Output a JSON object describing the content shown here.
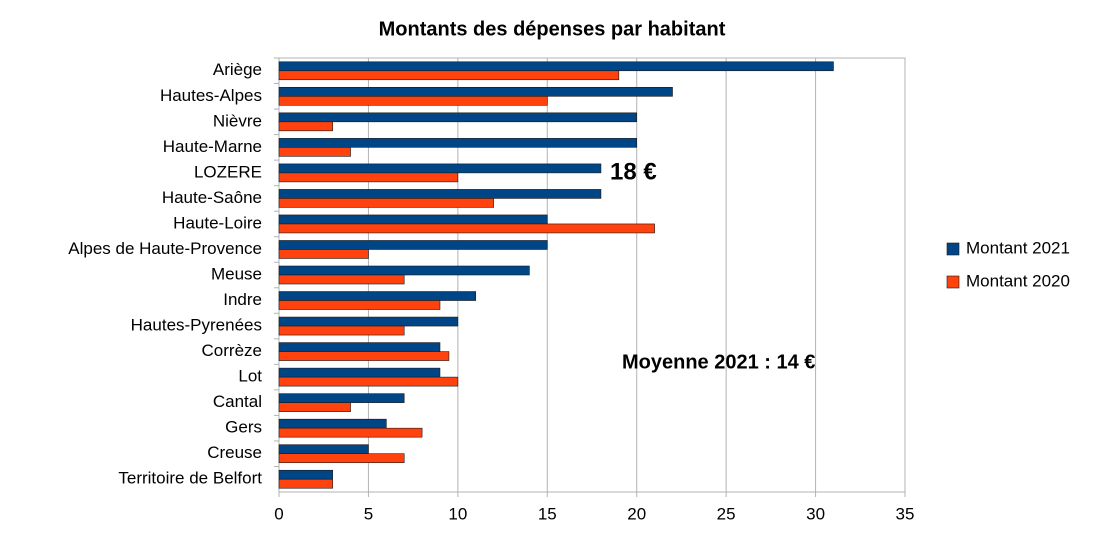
{
  "chart_data": {
    "type": "hbar",
    "title": "Montants des dépenses par habitant",
    "categories": [
      "Ariège",
      "Hautes-Alpes",
      "Nièvre",
      "Haute-Marne",
      "LOZERE",
      "Haute-Saône",
      "Haute-Loire",
      "Alpes de Haute-Provence",
      "Meuse",
      "Indre",
      "Hautes-Pyrenées",
      "Corrèze",
      "Lot",
      "Cantal",
      "Gers",
      "Creuse",
      "Territoire de Belfort"
    ],
    "series": [
      {
        "name": "Montant 2021",
        "color": "#004586",
        "values": [
          31,
          22,
          20,
          20,
          18,
          18,
          15,
          15,
          14,
          11,
          10,
          9,
          9,
          7,
          6,
          5,
          3
        ]
      },
      {
        "name": "Montant 2020",
        "color": "#ff420e",
        "values": [
          19,
          15,
          3,
          4,
          10,
          12,
          21,
          5,
          7,
          9,
          7,
          9.5,
          10,
          4,
          8,
          7,
          3
        ]
      }
    ],
    "xlim": [
      0,
      35
    ],
    "xticks": [
      0,
      5,
      10,
      15,
      20,
      25,
      30,
      35
    ],
    "grid": true,
    "legend": "right",
    "annotations": [
      "18 €",
      "Moyenne 2021 : 14 €"
    ]
  }
}
